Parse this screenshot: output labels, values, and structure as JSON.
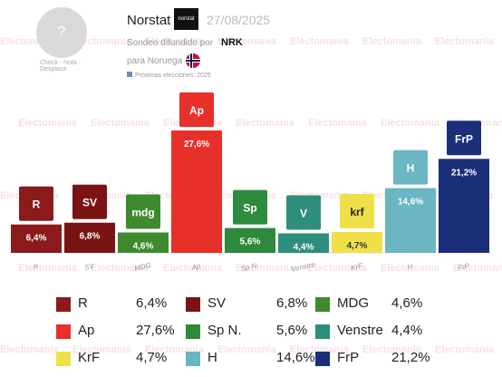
{
  "header": {
    "avatar_glyph": "?",
    "check_text": "Check · Nota · Desplaza",
    "pollster": "Norstat",
    "pollster_logo": "norstat",
    "date": "27/08/2025",
    "sondeo_label": "Sondeo difundido por",
    "sponsor": "NRK",
    "para_label": "para Noruega",
    "proximas": "Próximas elecciones: 2025"
  },
  "watermark": "Electomania",
  "colors": {
    "R": "#8b1a1a",
    "SV": "#7a1414",
    "MDG": "#3e8a2d",
    "Ap": "#e8302a",
    "SpN": "#2e8a3d",
    "Venstre": "#2e8e7c",
    "KrF": "#f0e048",
    "H": "#6ab6c2",
    "FrP": "#1a2e7a"
  },
  "chart_data": {
    "type": "bar",
    "categories": [
      "R",
      "SV",
      "MDG",
      "Ap",
      "Sp N.",
      "Venstre",
      "KrF",
      "H",
      "FrP"
    ],
    "values": [
      6.4,
      6.8,
      4.6,
      27.6,
      5.6,
      4.4,
      4.7,
      14.6,
      21.2
    ],
    "value_labels": [
      "6,4%",
      "6,8%",
      "4,6%",
      "27,6%",
      "5,6%",
      "4,4%",
      "4,7%",
      "14,6%",
      "21,2%"
    ],
    "ylim": [
      0,
      28
    ],
    "title": "",
    "xlabel": "",
    "ylabel": "",
    "grid": false
  },
  "legend": [
    {
      "name": "R",
      "value": "6,4%",
      "key": "R"
    },
    {
      "name": "SV",
      "value": "6,8%",
      "key": "SV"
    },
    {
      "name": "MDG",
      "value": "4,6%",
      "key": "MDG"
    },
    {
      "name": "Ap",
      "value": "27,6%",
      "key": "Ap"
    },
    {
      "name": "Sp N.",
      "value": "5,6%",
      "key": "SpN"
    },
    {
      "name": "Venstre",
      "value": "4,4%",
      "key": "Venstre"
    },
    {
      "name": "KrF",
      "value": "4,7%",
      "key": "KrF"
    },
    {
      "name": "H",
      "value": "14,6%",
      "key": "H"
    },
    {
      "name": "FrP",
      "value": "21,2%",
      "key": "FrP"
    }
  ],
  "legend_icons": [
    "R",
    "SV",
    "mdg",
    "Ap",
    "Sp",
    "V",
    "krf",
    "H",
    "FrP"
  ]
}
